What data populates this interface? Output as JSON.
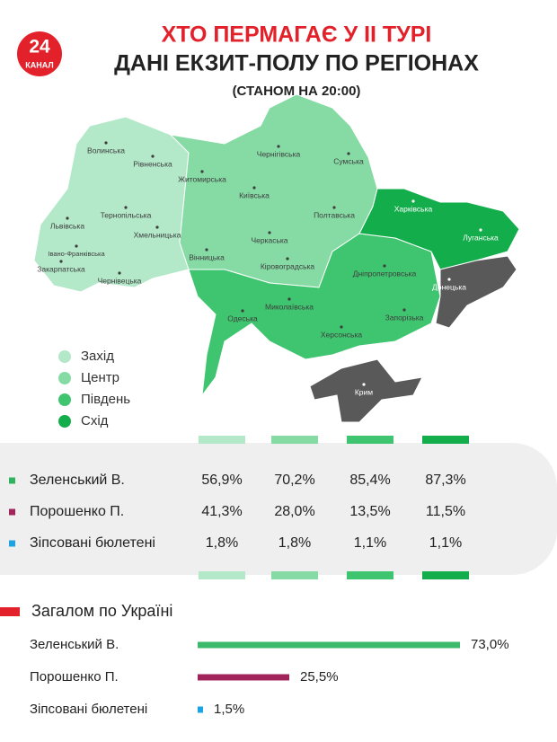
{
  "header": {
    "title_line1": "ХТО ПЕРМАГАЄ У ІІ ТУРІ",
    "title_line2": "ДАНІ ЕКЗИТ-ПОЛУ ПО РЕГІОНАХ",
    "subtitle": "(СТАНОМ НА 20:00)",
    "logo": {
      "number": "24",
      "label": "КАНАЛ"
    }
  },
  "map": {
    "regions": [
      "Волинська",
      "Рівненська",
      "Львівська",
      "Тернопільська",
      "Хмельницька",
      "Житомирська",
      "Чернігівська",
      "Сумська",
      "Київська",
      "Полтавська",
      "Харківська",
      "Луганська",
      "Донецька",
      "Черкаська",
      "Вінницька",
      "Кіровоградська",
      "Дніпропетровська",
      "Івано-Франківська",
      "Закарпатська",
      "Чернівецька",
      "Одеська",
      "Миколаївська",
      "Запорізька",
      "Херсонська",
      "Крим"
    ],
    "legend": [
      {
        "name": "Захід",
        "color": "#b3e8c9"
      },
      {
        "name": "Центр",
        "color": "#86dba5"
      },
      {
        "name": "Південь",
        "color": "#3fc56f"
      },
      {
        "name": "Схід",
        "color": "#13ad4b"
      }
    ]
  },
  "table": {
    "rows": [
      {
        "name": "Зеленський В.",
        "color": "#2fb35f",
        "values": [
          "56,9%",
          "70,2%",
          "85,4%",
          "87,3%"
        ]
      },
      {
        "name": "Порошенко П.",
        "color": "#a3245b",
        "values": [
          "41,3%",
          "28,0%",
          "13,5%",
          "11,5%"
        ]
      },
      {
        "name": "Зіпсовані бюлетені",
        "color": "#1ba3e6",
        "values": [
          "1,8%",
          "1,8%",
          "1,1%",
          "1,1%"
        ]
      }
    ]
  },
  "chart_data": {
    "type": "bar",
    "title": "Загалом по Україні",
    "categories": [
      "Зеленський В.",
      "Порошенко П.",
      "Зіпсовані бюлетені"
    ],
    "values": [
      73.0,
      25.5,
      1.5
    ],
    "value_labels": [
      "73,0%",
      "25,5%",
      "1,5%"
    ],
    "colors": [
      "#3cb96a",
      "#a0245a",
      "#1ba3e6"
    ]
  }
}
